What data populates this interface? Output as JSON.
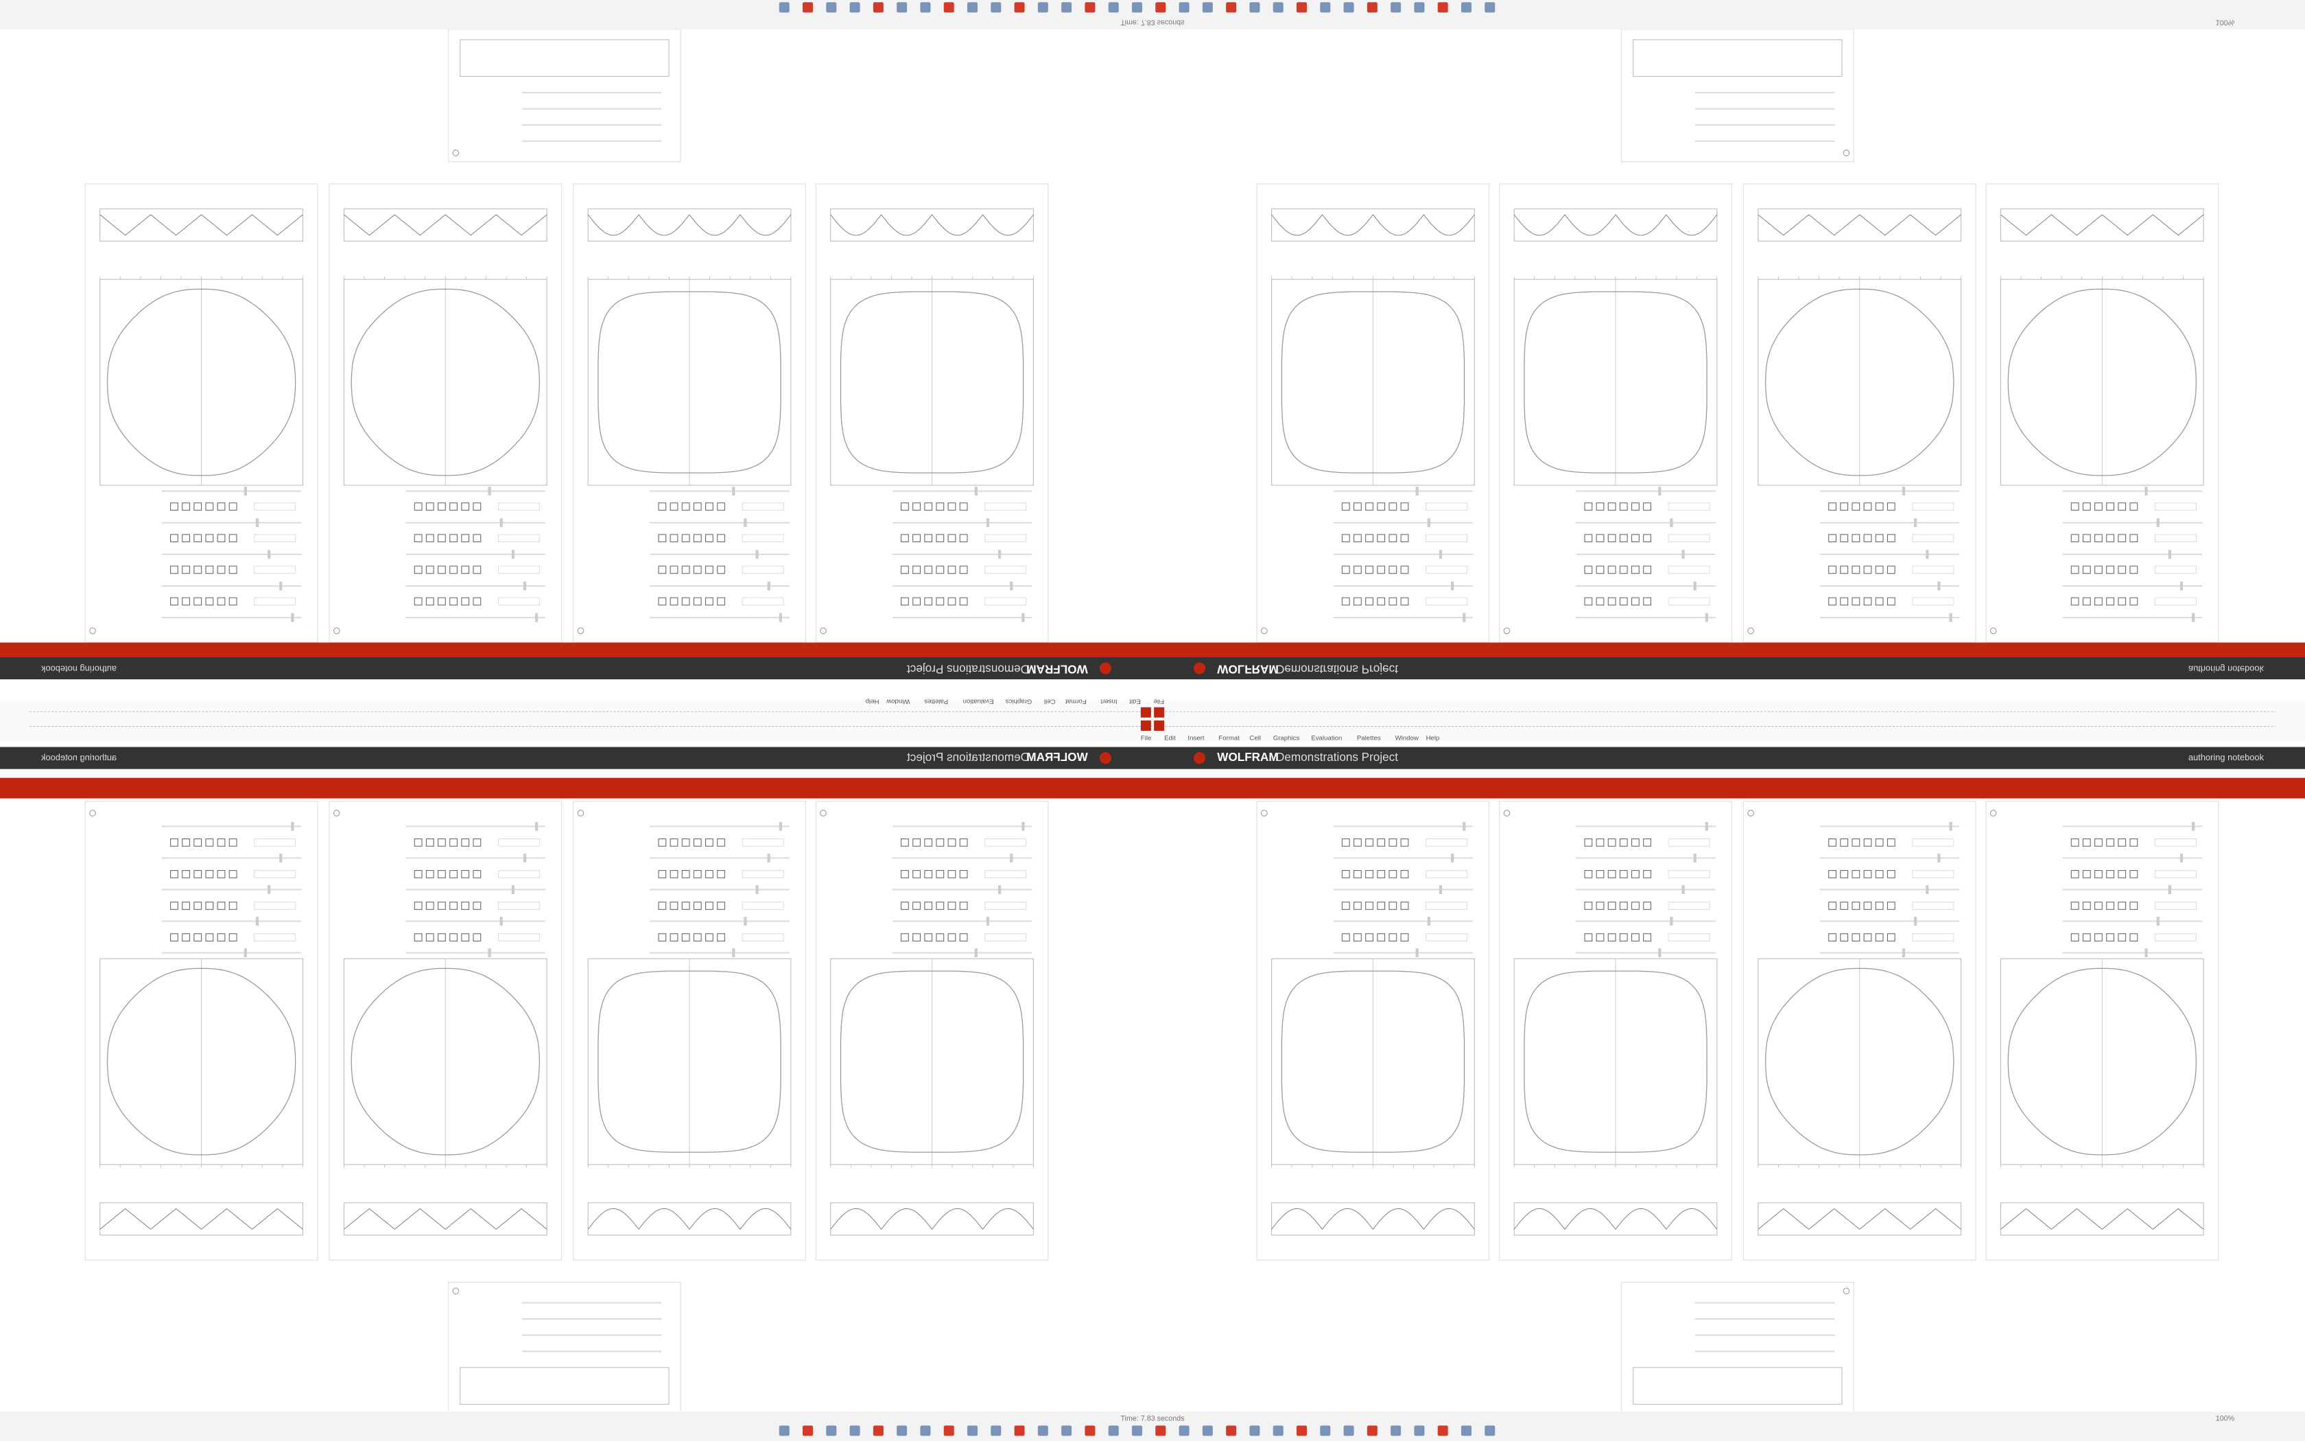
{
  "app": {
    "brand": "WOLFRAM",
    "product": "Demonstrations Project",
    "link": "authoring notebook",
    "menu": [
      "File",
      "Edit",
      "Insert",
      "Format",
      "Cell",
      "Graphics",
      "Evaluation",
      "Palettes",
      "Window",
      "Help"
    ],
    "status": "Time: 7.83 seconds",
    "zoom": "100%"
  }
}
